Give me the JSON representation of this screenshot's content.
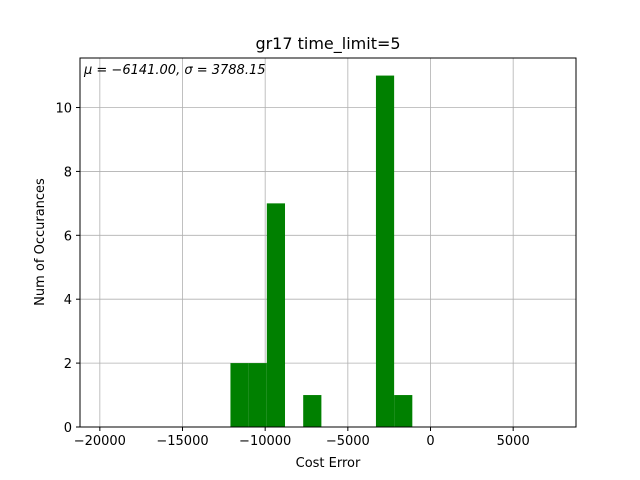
{
  "chart_data": {
    "type": "bar",
    "title": "gr17 time_limit=5",
    "xlabel": "Cost Error",
    "ylabel": "Num of Occurances",
    "annotation": "μ = −6141.00,  σ = 3788.15",
    "xlim": [
      -21200,
      8800
    ],
    "ylim": [
      0,
      11.55
    ],
    "xticks": [
      -20000,
      -15000,
      -10000,
      -5000,
      0,
      5000
    ],
    "xtick_labels": [
      "−20000",
      "−15000",
      "−10000",
      "−5000",
      "0",
      "5000"
    ],
    "yticks": [
      0,
      2,
      4,
      6,
      8,
      10
    ],
    "ytick_labels": [
      "0",
      "2",
      "4",
      "6",
      "8",
      "10"
    ],
    "grid": true,
    "bar_color": "#008000",
    "bins": [
      {
        "x0": -12100,
        "x1": -11000,
        "count": 2
      },
      {
        "x0": -11000,
        "x1": -9900,
        "count": 2
      },
      {
        "x0": -9900,
        "x1": -8800,
        "count": 7
      },
      {
        "x0": -7700,
        "x1": -6600,
        "count": 1
      },
      {
        "x0": -3300,
        "x1": -2200,
        "count": 11
      },
      {
        "x0": -2200,
        "x1": -1100,
        "count": 1
      }
    ]
  }
}
